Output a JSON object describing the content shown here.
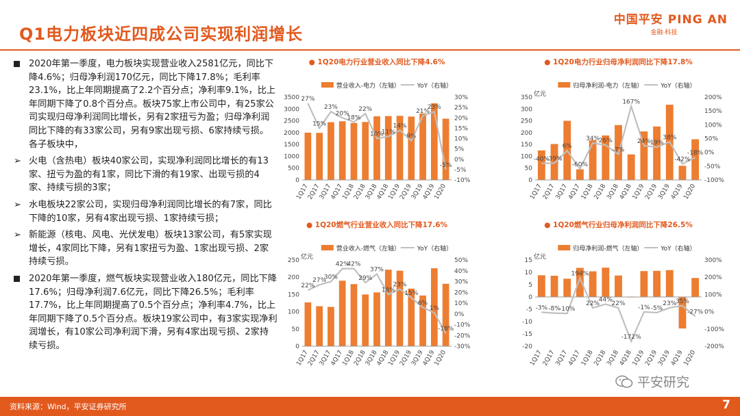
{
  "header": {
    "title": "Q1电力板块近四成公司实现利润增长",
    "logo_main": "中国平安 PING AN",
    "logo_sub": "金融·科技"
  },
  "colors": {
    "accent": "#e2591e",
    "bar": "#ed7d31",
    "line": "#bfbfbf"
  },
  "paragraphs": [
    {
      "bullet": "square",
      "text": "2020年第一季度，电力板块实现营业收入2581亿元，同比下降4.6%；归母净利润170亿元，同比下降17.8%；毛利率23.1%，比上年同期提高了2.2个百分点；净利率9.1%，比上年同期下降了0.8个百分点。板块75家上市公司中，有25家公司实现归母净利润同比增长，另有2家扭亏为盈；归母净利润同比下降的有33家公司，另有9家出现亏损、6家持续亏损。各子板块中，"
    },
    {
      "bullet": "arrow",
      "text": "火电（含热电）板块40家公司，实现净利润同比增长的有13家、扭亏为盈的有1家，同比下滑的有19家、出现亏损的4家、持续亏损的3家；"
    },
    {
      "bullet": "arrow",
      "text": "水电板块22家公司，实现归母净利润同比增长的有7家，同比下降的10家，另有4家出现亏损、1家持续亏损；"
    },
    {
      "bullet": "arrow",
      "text": "新能源（核电、风电、光伏发电）板块13家公司，有5家实现增长，4家同比下降，另有1家扭亏为盈、1家出现亏损、2家持续亏损。"
    },
    {
      "bullet": "square",
      "text": "2020年第一季度，燃气板块实现营业收入180亿元，同比下降17.6%；归母净利润7.6亿元，同比下降26.5%；毛利率17.7%，比上年同期提高了0.5个百分点；净利率4.7%，比上年同期下降了0.5个百分点。板块19家公司中，有3家实现净利润增长，有10家公司净利润下滑，另有4家出现亏损、2家持续亏损。"
    }
  ],
  "chart_data": [
    {
      "type": "bar",
      "title": "1Q20电力行业营业收入同比下降4.6%",
      "categories": [
        "1Q17",
        "2Q17",
        "3Q17",
        "4Q17",
        "1Q18",
        "2Q18",
        "3Q18",
        "4Q18",
        "1Q19",
        "2Q19",
        "3Q19",
        "4Q19",
        "1Q20"
      ],
      "series": [
        {
          "name": "营业收入-电力（左轴）",
          "kind": "bar",
          "axis": "left",
          "values": [
            2000,
            1990,
            2440,
            2480,
            2410,
            2450,
            2690,
            2700,
            2710,
            2680,
            2810,
            3240,
            2590
          ]
        },
        {
          "name": "YoY（右轴）",
          "kind": "line",
          "axis": "right",
          "values": [
            27,
            15,
            23,
            20,
            18,
            22,
            10,
            11,
            14,
            9,
            21,
            23,
            -5
          ],
          "labels": [
            "27%",
            "15%",
            "23%",
            "20%",
            "18%",
            "22%",
            "10%",
            "11%",
            "14%",
            "9%",
            "21%",
            "23%",
            "-5%"
          ]
        }
      ],
      "ylim_left": [
        0,
        3500
      ],
      "yticks_left": [
        0,
        500,
        1000,
        1500,
        2000,
        2500,
        3000,
        3500
      ],
      "ylim_right": [
        -10,
        30
      ],
      "yticks_right": [
        "-10%",
        "-5%",
        "0%",
        "5%",
        "10%",
        "15%",
        "20%",
        "25%",
        "30%"
      ],
      "unit_label": ""
    },
    {
      "type": "bar",
      "title": "1Q20电力行业归母净利润同比下降17.8%",
      "categories": [
        "1Q17",
        "2Q17",
        "3Q17",
        "4Q17",
        "1Q18",
        "2Q18",
        "3Q18",
        "4Q18",
        "1Q19",
        "2Q19",
        "3Q19",
        "4Q19",
        "1Q20"
      ],
      "series": [
        {
          "name": "归母净利润-电力（左轴）",
          "kind": "bar",
          "axis": "left",
          "values": [
            125,
            152,
            250,
            45,
            168,
            188,
            232,
            108,
            205,
            226,
            318,
            60,
            172
          ],
          "labels_on_bar": [
            true,
            true,
            true,
            false,
            true,
            true,
            true,
            false,
            true,
            true,
            true,
            true,
            true
          ]
        },
        {
          "name": "YoY（右轴）",
          "kind": "line",
          "axis": "right",
          "values": [
            -40,
            -39,
            6,
            -60,
            34,
            26,
            -7,
            167,
            24,
            19,
            38,
            -42,
            -18
          ],
          "labels": [
            "-40%",
            "-39%",
            "6%",
            "-60%",
            "34%",
            "26%",
            "-7%",
            "167%",
            "24%",
            "19%",
            "38%",
            "-42%",
            "-18%"
          ]
        }
      ],
      "ylim_left": [
        0,
        350
      ],
      "yticks_left": [
        0,
        50,
        100,
        150,
        200,
        250,
        300,
        350
      ],
      "ylim_right": [
        -100,
        200
      ],
      "yticks_right": [
        "-100%",
        "-50%",
        "0%",
        "50%",
        "100%",
        "150%",
        "200%"
      ],
      "unit_label": "亿元"
    },
    {
      "type": "bar",
      "title": "1Q20燃气行业营业收入同比下降17.6%",
      "categories": [
        "1Q17",
        "2Q17",
        "3Q17",
        "4Q17",
        "1Q18",
        "2Q18",
        "3Q18",
        "4Q18",
        "1Q19",
        "2Q19",
        "3Q19",
        "4Q19",
        "1Q20"
      ],
      "series": [
        {
          "name": "营业收入-燃气（左轴）",
          "kind": "bar",
          "axis": "left",
          "values": [
            127,
            116,
            114,
            190,
            180,
            150,
            156,
            222,
            219,
            167,
            147,
            226,
            181
          ]
        },
        {
          "name": "YoY（右轴）",
          "kind": "line",
          "axis": "right",
          "values": [
            22,
            27,
            30,
            42,
            42,
            29,
            37,
            18,
            23,
            15,
            6,
            1,
            -18
          ],
          "labels": [
            "22%",
            "27%",
            "30%",
            "42%",
            "42%",
            "29%",
            "37%",
            "18%",
            "23%",
            "15%",
            "6%",
            "1%",
            "-18%"
          ]
        }
      ],
      "ylim_left": [
        0,
        250
      ],
      "yticks_left": [
        0,
        50,
        100,
        150,
        200,
        250
      ],
      "ylim_right": [
        -30,
        50
      ],
      "yticks_right": [
        "-30%",
        "-20%",
        "-10%",
        "0%",
        "10%",
        "20%",
        "30%",
        "40%",
        "50%"
      ],
      "unit_label": "亿元"
    },
    {
      "type": "bar",
      "title": "1Q20燃气行业归母净利润同比下降26.5%",
      "categories": [
        "1Q17",
        "2Q17",
        "3Q17",
        "4Q17",
        "1Q18",
        "2Q18",
        "3Q18",
        "4Q18",
        "1Q19",
        "2Q19",
        "3Q19",
        "4Q19",
        "1Q20"
      ],
      "series": [
        {
          "name": "归母净利润-燃气（左轴）",
          "kind": "bar",
          "axis": "left",
          "values": [
            8.8,
            8.6,
            7.4,
            11.8,
            10.4,
            11.9,
            8.7,
            -0.2,
            10.5,
            10.6,
            10.9,
            -12.8,
            7.7
          ]
        },
        {
          "name": "YoY（右轴）",
          "kind": "line",
          "axis": "right",
          "values": [
            -3,
            -8,
            -10,
            194,
            22,
            44,
            22,
            -172,
            -1,
            -5,
            23,
            35,
            -27
          ],
          "labels": [
            "-3%",
            "-8%",
            "-10%",
            "194%",
            "22%",
            "44%",
            "22%",
            "-172%",
            "-1%",
            "-5%",
            "23%",
            "35%",
            "-27%"
          ]
        }
      ],
      "ylim_left": [
        -20,
        15
      ],
      "yticks_left": [
        -20,
        -15,
        -10,
        -5,
        0,
        5,
        10,
        15
      ],
      "ylim_right": [
        -200,
        300
      ],
      "yticks_right": [
        "-200%",
        "-100%",
        "0%",
        "100%",
        "200%",
        "300%"
      ],
      "unit_label": "亿元"
    }
  ],
  "footer": {
    "source": "资料来源：Wind，平安证券研究所",
    "page": "7"
  },
  "watermark": {
    "text": "平安研究"
  }
}
